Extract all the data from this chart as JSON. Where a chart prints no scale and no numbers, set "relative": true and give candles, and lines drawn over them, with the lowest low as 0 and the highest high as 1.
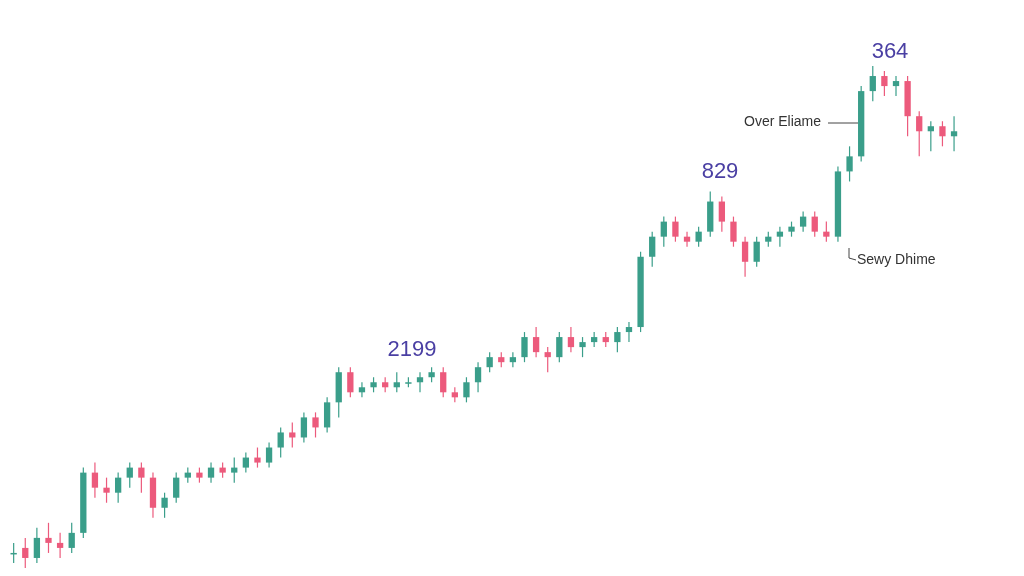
{
  "chart_data": {
    "type": "candlestick",
    "relative": true,
    "categories": [
      null,
      null,
      null,
      null,
      null,
      null,
      null,
      null,
      null,
      null,
      null,
      null,
      null,
      null,
      null,
      null,
      null,
      null,
      null,
      null,
      null,
      null,
      null,
      null,
      null,
      null,
      null,
      null,
      null,
      null,
      null,
      null,
      null,
      null,
      null,
      null,
      null,
      null,
      null,
      null,
      null,
      null,
      null,
      null,
      null,
      null,
      null,
      null,
      null,
      null,
      null,
      null,
      null,
      null,
      null,
      null,
      null,
      null,
      null,
      null,
      null,
      null,
      null,
      null,
      null,
      null,
      null,
      null,
      null,
      null,
      null,
      null,
      null,
      null,
      null,
      null,
      null,
      null,
      null,
      null,
      null,
      null
    ],
    "ohlc": [
      [
        0.03,
        0.05,
        0.01,
        0.03
      ],
      [
        0.04,
        0.06,
        0.0,
        0.02
      ],
      [
        0.02,
        0.08,
        0.01,
        0.06
      ],
      [
        0.06,
        0.09,
        0.03,
        0.05
      ],
      [
        0.05,
        0.07,
        0.02,
        0.04
      ],
      [
        0.04,
        0.09,
        0.03,
        0.07
      ],
      [
        0.07,
        0.2,
        0.06,
        0.19
      ],
      [
        0.19,
        0.21,
        0.14,
        0.16
      ],
      [
        0.16,
        0.18,
        0.13,
        0.15
      ],
      [
        0.15,
        0.19,
        0.13,
        0.18
      ],
      [
        0.18,
        0.21,
        0.16,
        0.2
      ],
      [
        0.2,
        0.21,
        0.15,
        0.18
      ],
      [
        0.18,
        0.19,
        0.1,
        0.12
      ],
      [
        0.12,
        0.15,
        0.1,
        0.14
      ],
      [
        0.14,
        0.19,
        0.13,
        0.18
      ],
      [
        0.18,
        0.2,
        0.17,
        0.19
      ],
      [
        0.19,
        0.2,
        0.17,
        0.18
      ],
      [
        0.18,
        0.21,
        0.17,
        0.2
      ],
      [
        0.2,
        0.21,
        0.18,
        0.19
      ],
      [
        0.19,
        0.22,
        0.17,
        0.2
      ],
      [
        0.2,
        0.23,
        0.19,
        0.22
      ],
      [
        0.22,
        0.24,
        0.2,
        0.21
      ],
      [
        0.21,
        0.25,
        0.2,
        0.24
      ],
      [
        0.24,
        0.28,
        0.22,
        0.27
      ],
      [
        0.27,
        0.29,
        0.24,
        0.26
      ],
      [
        0.26,
        0.31,
        0.25,
        0.3
      ],
      [
        0.3,
        0.31,
        0.26,
        0.28
      ],
      [
        0.28,
        0.34,
        0.27,
        0.33
      ],
      [
        0.33,
        0.4,
        0.3,
        0.39
      ],
      [
        0.39,
        0.4,
        0.34,
        0.35
      ],
      [
        0.35,
        0.37,
        0.34,
        0.36
      ],
      [
        0.36,
        0.38,
        0.35,
        0.37
      ],
      [
        0.37,
        0.38,
        0.35,
        0.36
      ],
      [
        0.36,
        0.39,
        0.35,
        0.37
      ],
      [
        0.37,
        0.38,
        0.36,
        0.37
      ],
      [
        0.37,
        0.39,
        0.35,
        0.38
      ],
      [
        0.38,
        0.4,
        0.37,
        0.39
      ],
      [
        0.39,
        0.4,
        0.34,
        0.35
      ],
      [
        0.35,
        0.36,
        0.33,
        0.34
      ],
      [
        0.34,
        0.38,
        0.33,
        0.37
      ],
      [
        0.37,
        0.41,
        0.35,
        0.4
      ],
      [
        0.4,
        0.43,
        0.39,
        0.42
      ],
      [
        0.42,
        0.43,
        0.4,
        0.41
      ],
      [
        0.41,
        0.43,
        0.4,
        0.42
      ],
      [
        0.42,
        0.47,
        0.41,
        0.46
      ],
      [
        0.46,
        0.48,
        0.42,
        0.43
      ],
      [
        0.43,
        0.44,
        0.39,
        0.42
      ],
      [
        0.42,
        0.47,
        0.41,
        0.46
      ],
      [
        0.46,
        0.48,
        0.43,
        0.44
      ],
      [
        0.44,
        0.46,
        0.42,
        0.45
      ],
      [
        0.45,
        0.47,
        0.44,
        0.46
      ],
      [
        0.46,
        0.47,
        0.44,
        0.45
      ],
      [
        0.45,
        0.48,
        0.43,
        0.47
      ],
      [
        0.47,
        0.49,
        0.45,
        0.48
      ],
      [
        0.48,
        0.63,
        0.47,
        0.62
      ],
      [
        0.62,
        0.67,
        0.6,
        0.66
      ],
      [
        0.66,
        0.7,
        0.64,
        0.69
      ],
      [
        0.69,
        0.7,
        0.65,
        0.66
      ],
      [
        0.66,
        0.67,
        0.64,
        0.65
      ],
      [
        0.65,
        0.68,
        0.64,
        0.67
      ],
      [
        0.67,
        0.75,
        0.66,
        0.73
      ],
      [
        0.73,
        0.74,
        0.67,
        0.69
      ],
      [
        0.69,
        0.7,
        0.64,
        0.65
      ],
      [
        0.65,
        0.66,
        0.58,
        0.61
      ],
      [
        0.61,
        0.66,
        0.6,
        0.65
      ],
      [
        0.65,
        0.67,
        0.64,
        0.66
      ],
      [
        0.66,
        0.68,
        0.64,
        0.67
      ],
      [
        0.67,
        0.69,
        0.66,
        0.68
      ],
      [
        0.68,
        0.71,
        0.67,
        0.7
      ],
      [
        0.7,
        0.71,
        0.66,
        0.67
      ],
      [
        0.67,
        0.69,
        0.65,
        0.66
      ],
      [
        0.66,
        0.8,
        0.65,
        0.79
      ],
      [
        0.79,
        0.84,
        0.77,
        0.82
      ],
      [
        0.82,
        0.96,
        0.81,
        0.95
      ],
      [
        0.95,
        1.0,
        0.93,
        0.98
      ],
      [
        0.98,
        0.99,
        0.94,
        0.96
      ],
      [
        0.96,
        0.98,
        0.94,
        0.97
      ],
      [
        0.97,
        0.98,
        0.86,
        0.9
      ],
      [
        0.9,
        0.91,
        0.82,
        0.87
      ],
      [
        0.87,
        0.89,
        0.83,
        0.88
      ],
      [
        0.88,
        0.89,
        0.84,
        0.86
      ],
      [
        0.86,
        0.9,
        0.83,
        0.87
      ]
    ],
    "colors": [
      "#3a9e8a",
      "#ec5a7c",
      "#3a9e8a",
      "#ec5a7c",
      "#ec5a7c",
      "#3a9e8a",
      "#3a9e8a",
      "#ec5a7c",
      "#ec5a7c",
      "#3a9e8a",
      "#3a9e8a",
      "#ec5a7c",
      "#ec5a7c",
      "#3a9e8a",
      "#3a9e8a",
      "#3a9e8a",
      "#ec5a7c",
      "#3a9e8a",
      "#ec5a7c",
      "#3a9e8a",
      "#3a9e8a",
      "#ec5a7c",
      "#3a9e8a",
      "#3a9e8a",
      "#ec5a7c",
      "#3a9e8a",
      "#ec5a7c",
      "#3a9e8a",
      "#3a9e8a",
      "#ec5a7c",
      "#3a9e8a",
      "#3a9e8a",
      "#ec5a7c",
      "#3a9e8a",
      "#3a9e8a",
      "#3a9e8a",
      "#3a9e8a",
      "#ec5a7c",
      "#ec5a7c",
      "#3a9e8a",
      "#3a9e8a",
      "#3a9e8a",
      "#ec5a7c",
      "#3a9e8a",
      "#3a9e8a",
      "#ec5a7c",
      "#ec5a7c",
      "#3a9e8a",
      "#ec5a7c",
      "#3a9e8a",
      "#3a9e8a",
      "#ec5a7c",
      "#3a9e8a",
      "#3a9e8a",
      "#3a9e8a",
      "#3a9e8a",
      "#3a9e8a",
      "#ec5a7c",
      "#ec5a7c",
      "#3a9e8a",
      "#3a9e8a",
      "#ec5a7c",
      "#ec5a7c",
      "#ec5a7c",
      "#3a9e8a",
      "#3a9e8a",
      "#3a9e8a",
      "#3a9e8a",
      "#3a9e8a",
      "#ec5a7c",
      "#ec5a7c",
      "#3a9e8a",
      "#3a9e8a",
      "#3a9e8a",
      "#3a9e8a",
      "#ec5a7c",
      "#3a9e8a",
      "#ec5a7c",
      "#ec5a7c",
      "#3a9e8a",
      "#ec5a7c",
      "#3a9e8a"
    ],
    "annotations": [
      "2199",
      "829",
      "364",
      "Over Eliame",
      "Sewy Dhime"
    ]
  }
}
